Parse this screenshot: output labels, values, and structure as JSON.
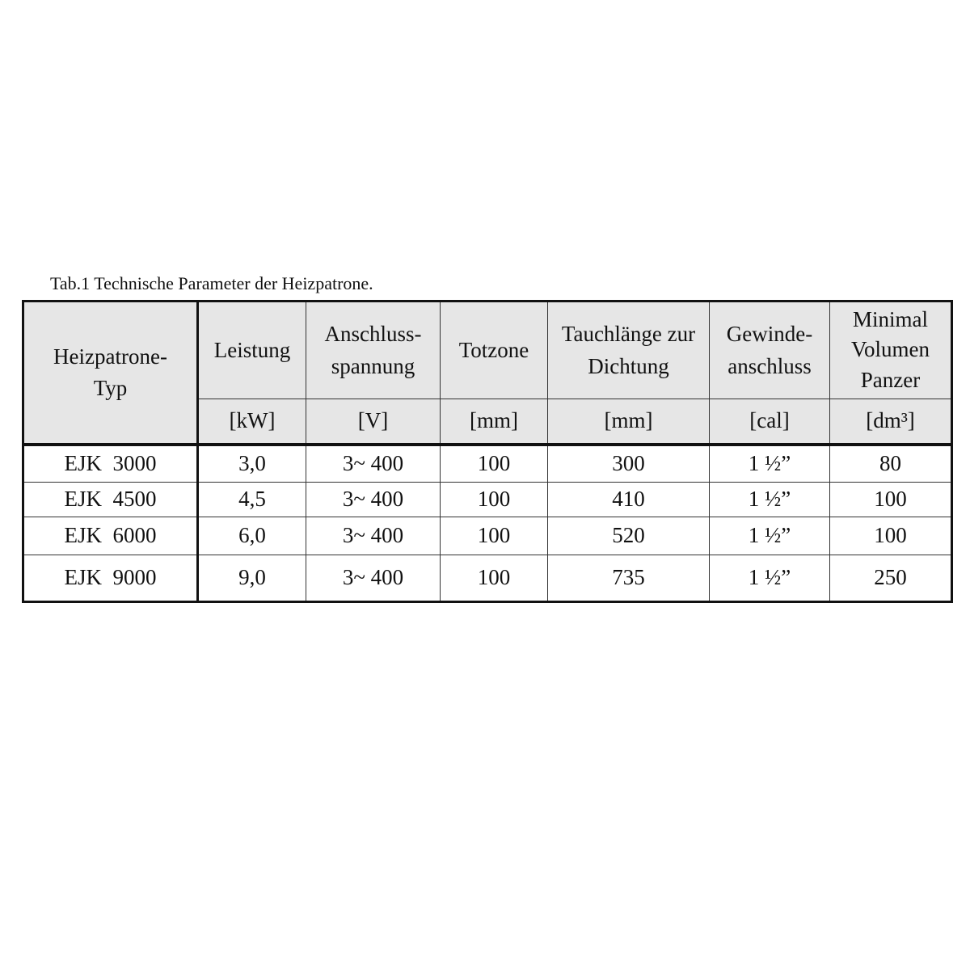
{
  "caption": "Tab.1 Technische Parameter der Heizpatrone.",
  "header": {
    "type": "Heizpatrone-Typ",
    "columns": [
      {
        "label": "Leistung",
        "unit": "[kW]"
      },
      {
        "label": "Anschluss-spannung",
        "unit": "[V]"
      },
      {
        "label": "Totzone",
        "unit": "[mm]"
      },
      {
        "label": "Tauchlänge zur Dichtung",
        "unit": "[mm]"
      },
      {
        "label": "Gewinde-anschluss",
        "unit": "[cal]"
      },
      {
        "label": "Minimal Volumen Panzer",
        "unit": "[dm³]"
      }
    ]
  },
  "rows": [
    [
      "EJK  3000",
      "3,0",
      "3~ 400",
      "100",
      "300",
      "1 ½”",
      "80"
    ],
    [
      "EJK  4500",
      "4,5",
      "3~ 400",
      "100",
      "410",
      "1 ½”",
      "100"
    ],
    [
      "EJK  6000",
      "6,0",
      "3~ 400",
      "100",
      "520",
      "1 ½”",
      "100"
    ],
    [
      "EJK  9000",
      "9,0",
      "3~ 400",
      "100",
      "735",
      "1 ½”",
      "250"
    ]
  ]
}
